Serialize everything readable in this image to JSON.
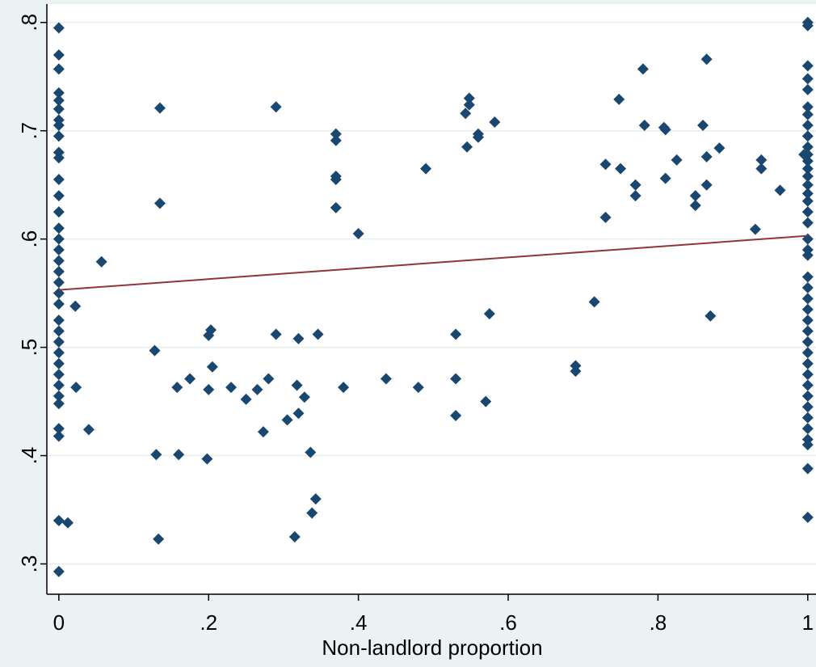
{
  "chart_data": {
    "type": "scatter",
    "x_label": "Non-landlord proportion",
    "xlim": [
      -0.016,
      1.011
    ],
    "ylim": [
      0.272,
      0.817
    ],
    "xticks": [
      0,
      {
        "value": 0.2,
        "label": ".2"
      },
      {
        "value": 0.4,
        "label": ".4"
      },
      {
        "value": 0.6,
        "label": ".6"
      },
      {
        "value": 0.8,
        "label": ".8"
      },
      1
    ],
    "yticks": [
      {
        "value": 0.3,
        "label": ".3"
      },
      {
        "value": 0.4,
        "label": ".4"
      },
      {
        "value": 0.5,
        "label": ".5"
      },
      {
        "value": 0.6,
        "label": ".6"
      },
      {
        "value": 0.7,
        "label": ".7"
      },
      {
        "value": 0.8,
        "label": ".8"
      }
    ],
    "grid": true,
    "marker_color": "#1a476f",
    "points": {
      "x": [
        0,
        0,
        0,
        0,
        0,
        0,
        0,
        0,
        0,
        0,
        0,
        0,
        0,
        0,
        0,
        0,
        0,
        0,
        0,
        0,
        0,
        0,
        0,
        0,
        0,
        0,
        0,
        0,
        0,
        0,
        0,
        0,
        0,
        0,
        0,
        0.012,
        0.022,
        0.023,
        0.04,
        0.057,
        0.128,
        0.13,
        0.133,
        0.135,
        0.135,
        0.158,
        0.16,
        0.175,
        0.198,
        0.2,
        0.2,
        0.203,
        0.205,
        0.23,
        0.25,
        0.265,
        0.273,
        0.28,
        0.29,
        0.29,
        0.305,
        0.315,
        0.318,
        0.32,
        0.32,
        0.328,
        0.336,
        0.338,
        0.343,
        0.346,
        0.37,
        0.37,
        0.37,
        0.37,
        0.37,
        0.38,
        0.4,
        0.437,
        0.48,
        0.49,
        0.53,
        0.53,
        0.53,
        0.543,
        0.545,
        0.548,
        0.548,
        0.56,
        0.56,
        0.57,
        0.575,
        0.582,
        0.69,
        0.69,
        0.715,
        0.73,
        0.73,
        0.748,
        0.75,
        0.77,
        0.77,
        0.78,
        0.782,
        0.808,
        0.81,
        0.81,
        0.825,
        0.85,
        0.85,
        0.86,
        0.865,
        0.865,
        0.865,
        0.87,
        0.882,
        0.93,
        0.938,
        0.938,
        0.963,
        0.995,
        1,
        1,
        1,
        1,
        1,
        1,
        1,
        1,
        1,
        1,
        1,
        1,
        1,
        1,
        1,
        1,
        1,
        1,
        1,
        1,
        1,
        1,
        1,
        1,
        1,
        1,
        1,
        1,
        1,
        1,
        1,
        1,
        1,
        1,
        1,
        1,
        1,
        1,
        1,
        1,
        1
      ],
      "y": [
        0.795,
        0.77,
        0.757,
        0.735,
        0.728,
        0.72,
        0.71,
        0.705,
        0.695,
        0.68,
        0.675,
        0.655,
        0.64,
        0.625,
        0.61,
        0.6,
        0.59,
        0.58,
        0.57,
        0.56,
        0.55,
        0.54,
        0.525,
        0.515,
        0.505,
        0.495,
        0.485,
        0.475,
        0.465,
        0.455,
        0.448,
        0.425,
        0.418,
        0.34,
        0.293,
        0.338,
        0.538,
        0.463,
        0.424,
        0.579,
        0.497,
        0.401,
        0.323,
        0.721,
        0.633,
        0.463,
        0.401,
        0.471,
        0.397,
        0.511,
        0.461,
        0.516,
        0.482,
        0.463,
        0.452,
        0.461,
        0.422,
        0.471,
        0.722,
        0.512,
        0.433,
        0.325,
        0.465,
        0.439,
        0.508,
        0.454,
        0.403,
        0.347,
        0.36,
        0.512,
        0.697,
        0.691,
        0.658,
        0.655,
        0.629,
        0.463,
        0.605,
        0.471,
        0.463,
        0.665,
        0.512,
        0.471,
        0.437,
        0.716,
        0.685,
        0.73,
        0.724,
        0.697,
        0.694,
        0.45,
        0.531,
        0.708,
        0.483,
        0.478,
        0.542,
        0.669,
        0.62,
        0.729,
        0.665,
        0.65,
        0.64,
        0.757,
        0.705,
        0.703,
        0.701,
        0.656,
        0.673,
        0.64,
        0.631,
        0.705,
        0.766,
        0.676,
        0.65,
        0.529,
        0.684,
        0.609,
        0.673,
        0.665,
        0.645,
        0.678,
        0.8,
        0.797,
        0.76,
        0.748,
        0.738,
        0.722,
        0.715,
        0.705,
        0.695,
        0.685,
        0.678,
        0.672,
        0.665,
        0.658,
        0.65,
        0.642,
        0.635,
        0.625,
        0.615,
        0.6,
        0.59,
        0.585,
        0.565,
        0.555,
        0.545,
        0.535,
        0.525,
        0.515,
        0.505,
        0.495,
        0.485,
        0.475,
        0.465,
        0.455,
        0.445,
        0.435,
        0.425,
        0.415,
        0.41,
        0.388,
        0.343
      ]
    },
    "fit_line": {
      "color": "#90353b",
      "x": [
        0,
        1
      ],
      "y": [
        0.553,
        0.603
      ]
    }
  }
}
